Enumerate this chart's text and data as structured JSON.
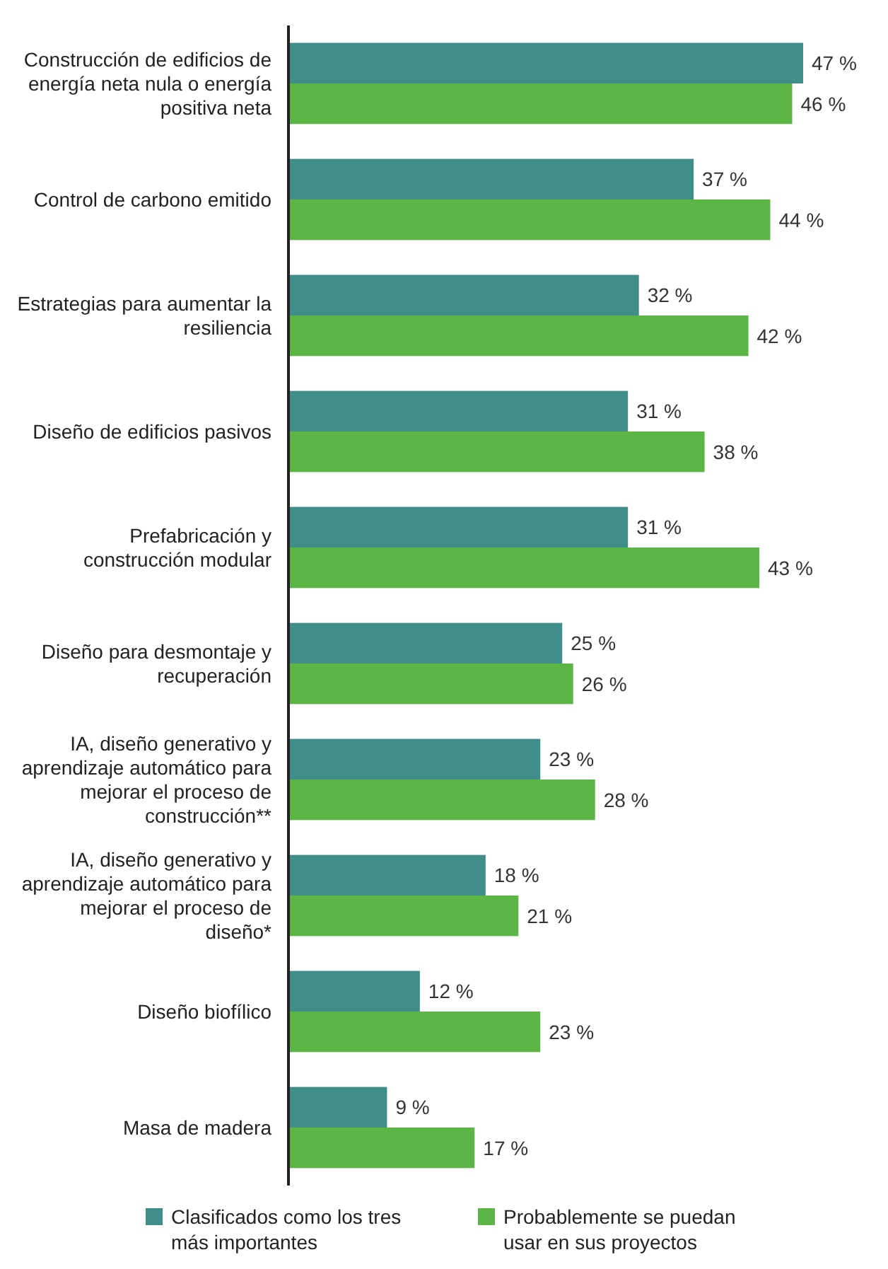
{
  "chart_data": {
    "type": "bar",
    "orientation": "horizontal",
    "legend": "bottom",
    "categories": [
      "Construcción de edificios de energía neta nula o energía positiva neta",
      "Control de carbono emitido",
      "Estrategias para aumentar la resiliencia",
      "Diseño de edificios pasivos",
      "Prefabricación y construcción modular",
      "Diseño para desmontaje y recuperación",
      "IA, diseño generativo y aprendizaje automático para mejorar el proceso de construcción**",
      "IA, diseño generativo y aprendizaje automático para mejorar el proceso de diseño*",
      "Diseño biofílico",
      "Masa de madera"
    ],
    "series": [
      {
        "name": "Clasificados como los tres más importantes",
        "color": "#3f8e89",
        "values": [
          47,
          37,
          32,
          31,
          31,
          25,
          23,
          18,
          12,
          9
        ],
        "value_labels": [
          "47 %",
          "37 %",
          "32 %",
          "31 %",
          "31 %",
          "25 %",
          "23 %",
          "18 %",
          "12 %",
          "9 %"
        ]
      },
      {
        "name": "Probablemente se puedan usar en sus proyectos",
        "color": "#5db546",
        "values": [
          46,
          44,
          42,
          38,
          43,
          26,
          28,
          21,
          23,
          17
        ],
        "value_labels": [
          "46 %",
          "44 %",
          "42 %",
          "38 %",
          "43 %",
          "26 %",
          "28 %",
          "21 %",
          "23 %",
          "17 %"
        ]
      }
    ]
  }
}
